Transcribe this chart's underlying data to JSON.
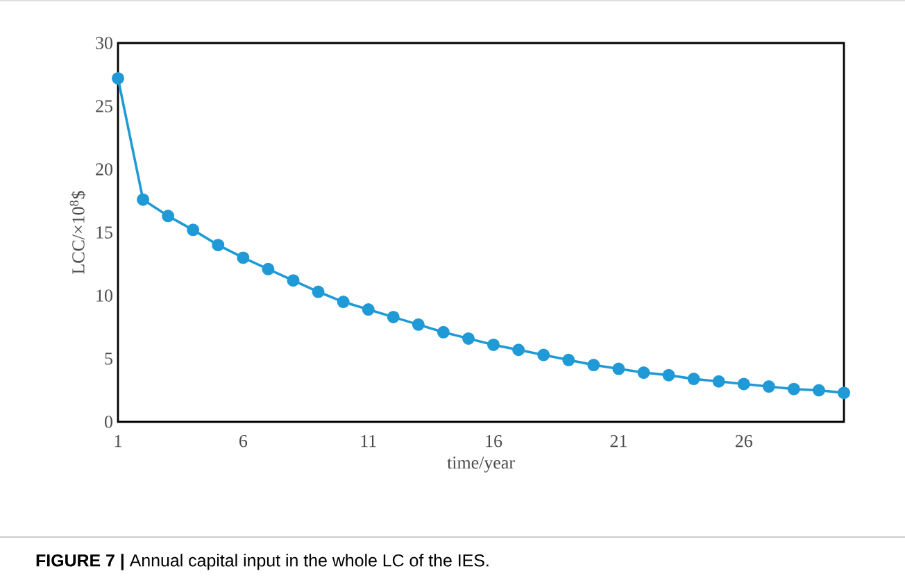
{
  "chart_data": {
    "type": "line",
    "xlabel": "time/year",
    "ylabel": "LCC/×10$^{8}$$",
    "annotations": [
      "**FIGURE 7 |** Annual capital input in the whole LC of the IES."
    ],
    "x": [
      1,
      2,
      3,
      4,
      5,
      6,
      7,
      8,
      9,
      10,
      11,
      12,
      13,
      14,
      15,
      16,
      17,
      18,
      19,
      20,
      21,
      22,
      23,
      24,
      25,
      26,
      27,
      28,
      29,
      30
    ],
    "values": [
      27.2,
      17.6,
      16.3,
      15.2,
      14.0,
      13.0,
      12.1,
      11.2,
      10.3,
      9.5,
      8.9,
      8.3,
      7.7,
      7.1,
      6.6,
      6.1,
      5.7,
      5.3,
      4.9,
      4.5,
      4.2,
      3.9,
      3.7,
      3.4,
      3.2,
      3.0,
      2.8,
      2.6,
      2.5,
      2.3
    ],
    "color": "#1f9ad6",
    "marker": "circle",
    "line_style": "solid",
    "grid": false,
    "xlim": [
      1,
      30
    ],
    "xticks": [
      1,
      6,
      11,
      16,
      21,
      26
    ],
    "ylim": [
      0,
      30
    ],
    "yticks": [
      0,
      5,
      10,
      15,
      20,
      25,
      30
    ]
  }
}
